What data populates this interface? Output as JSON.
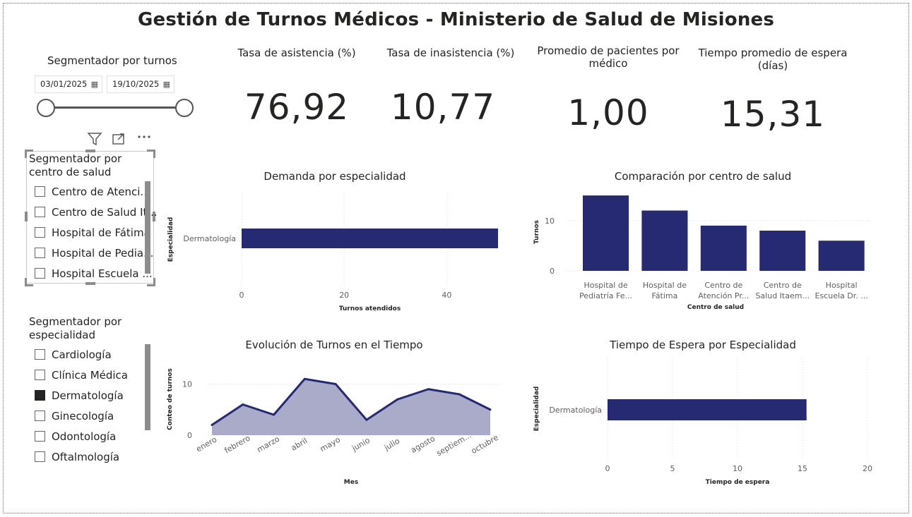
{
  "title": "Gestión de Turnos Médicos - Ministerio de Salud de Misiones",
  "date_slicer": {
    "title": "Segmentador por turnos",
    "start_date": "03/01/2025",
    "end_date": "19/10/2025",
    "calendar_icon": "calendar-icon"
  },
  "visual_header": {
    "icons": [
      "filter-icon",
      "focus-mode-icon",
      "more-options-icon"
    ]
  },
  "health_center_slicer": {
    "title_line1": "Segmentador por",
    "title_line2": "centro de salud",
    "items": [
      {
        "label": "Centro de Atenci...",
        "checked": false
      },
      {
        "label": "Centro de Salud It...",
        "checked": false
      },
      {
        "label": "Hospital de Fátima",
        "checked": false
      },
      {
        "label": "Hospital de Pedia...",
        "checked": false
      },
      {
        "label": "Hospital Escuela ...",
        "checked": false
      }
    ]
  },
  "specialty_slicer": {
    "title_line1": "Segmentador por",
    "title_line2": "especialidad",
    "items": [
      {
        "label": "Cardiología",
        "checked": false
      },
      {
        "label": "Clínica Médica",
        "checked": false
      },
      {
        "label": "Dermatología",
        "checked": true
      },
      {
        "label": "Ginecología",
        "checked": false
      },
      {
        "label": "Odontología",
        "checked": false
      },
      {
        "label": "Oftalmología",
        "checked": false
      }
    ]
  },
  "kpis": [
    {
      "label": "Tasa de asistencia (%)",
      "value": "76,92"
    },
    {
      "label": "Tasa de inasistencia (%)",
      "value": "10,77"
    },
    {
      "label_line1": "Promedio de pacientes por",
      "label_line2": "médico",
      "value": "1,00"
    },
    {
      "label_line1": "Tiempo promedio de espera",
      "label_line2": "(días)",
      "value": "15,31"
    }
  ],
  "colors": {
    "bar": "#252a72",
    "area_fill": "#a9abc9",
    "area_line": "#252a72",
    "grid": "#d9d9d9",
    "axis_text": "#605e5c"
  },
  "chart_data": [
    {
      "type": "bar",
      "orientation": "horizontal",
      "title": "Demanda por especialidad",
      "categories": [
        "Dermatología"
      ],
      "values": [
        50
      ],
      "xlabel": "Turnos atendidos",
      "ylabel": "Especialidad",
      "xticks": [
        "0",
        "20",
        "40"
      ],
      "xlim": [
        0,
        50
      ]
    },
    {
      "type": "bar",
      "title": "Comparación por centro de salud",
      "categories": [
        [
          "Hospital de",
          "Pediatría Fe..."
        ],
        [
          "Hospital de",
          "Fátima"
        ],
        [
          "Centro de",
          "Atención Pr..."
        ],
        [
          "Centro de",
          "Salud Itaem..."
        ],
        [
          "Hospital",
          "Escuela Dr. ..."
        ]
      ],
      "values": [
        15,
        12,
        9,
        8,
        6
      ],
      "xlabel": "Centro de salud",
      "ylabel": "Turnos",
      "yticks": [
        "0",
        "10"
      ],
      "ylim": [
        0,
        16
      ]
    },
    {
      "type": "area",
      "title": "Evolución de Turnos en el Tiempo",
      "categories": [
        "enero",
        "febrero",
        "marzo",
        "abril",
        "mayo",
        "junio",
        "julio",
        "agosto",
        "septiem...",
        "octubre"
      ],
      "values": [
        2,
        6,
        4,
        11,
        10,
        3,
        7,
        9,
        8,
        5
      ],
      "xlabel": "Mes",
      "ylabel": "Conteo de turnos",
      "yticks": [
        "0",
        "10"
      ],
      "ylim": [
        0,
        12
      ]
    },
    {
      "type": "bar",
      "orientation": "horizontal",
      "title": "Tiempo de Espera por Especialidad",
      "categories": [
        "Dermatología"
      ],
      "values": [
        15.31
      ],
      "xlabel": "Tiempo de espera",
      "ylabel": "Especialidad",
      "xticks": [
        "0",
        "5",
        "10",
        "15",
        "20"
      ],
      "xlim": [
        0,
        20
      ]
    }
  ]
}
